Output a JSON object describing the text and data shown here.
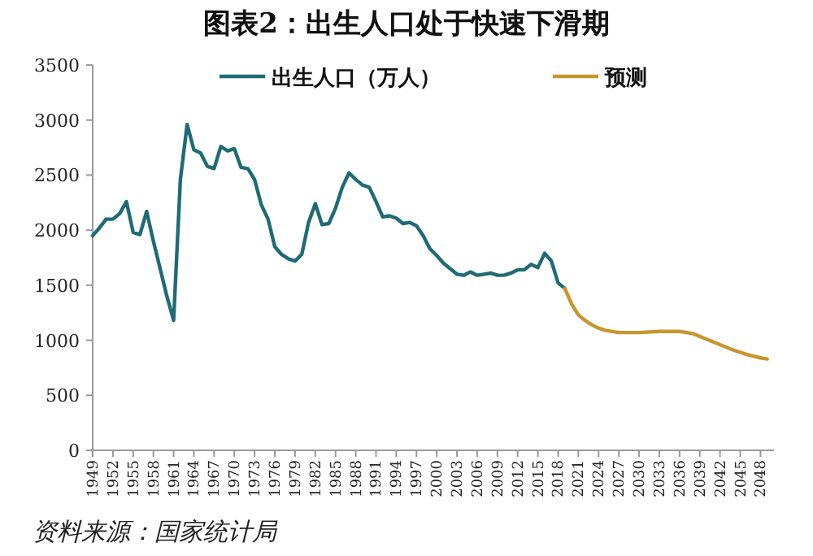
{
  "chart_data": {
    "type": "line",
    "title": "图表2：出生人口处于快速下滑期",
    "annotations": [
      "资料来源：国家统计局"
    ],
    "xlim": [
      1949,
      2050
    ],
    "xticks": [
      1949,
      1952,
      1955,
      1958,
      1961,
      1964,
      1967,
      1970,
      1973,
      1976,
      1979,
      1982,
      1985,
      1988,
      1991,
      1994,
      1997,
      2000,
      2003,
      2006,
      2009,
      2012,
      2015,
      2018,
      2021,
      2024,
      2027,
      2030,
      2033,
      2036,
      2039,
      2042,
      2045,
      2048
    ],
    "ylim": [
      0,
      3500
    ],
    "yticks": [
      0,
      500,
      1000,
      1500,
      2000,
      2500,
      3000,
      3500
    ],
    "grid": false,
    "legend": "top",
    "marker": "none",
    "line_style": "solid",
    "series": [
      {
        "name": "出生人口（万人）",
        "color": "#1f6b75",
        "x": [
          1949,
          1950,
          1951,
          1952,
          1953,
          1954,
          1955,
          1956,
          1957,
          1958,
          1959,
          1960,
          1961,
          1962,
          1963,
          1964,
          1965,
          1966,
          1967,
          1968,
          1969,
          1970,
          1971,
          1972,
          1973,
          1974,
          1975,
          1976,
          1977,
          1978,
          1979,
          1980,
          1981,
          1982,
          1983,
          1984,
          1985,
          1986,
          1987,
          1988,
          1989,
          1990,
          1991,
          1992,
          1993,
          1994,
          1995,
          1996,
          1997,
          1998,
          1999,
          2000,
          2001,
          2002,
          2003,
          2004,
          2005,
          2006,
          2007,
          2008,
          2009,
          2010,
          2011,
          2012,
          2013,
          2014,
          2015,
          2016,
          2017,
          2018,
          2019
        ],
        "values": [
          1950,
          2020,
          2100,
          2100,
          2150,
          2260,
          1980,
          1960,
          2170,
          1900,
          1650,
          1400,
          1180,
          2460,
          2960,
          2730,
          2700,
          2580,
          2560,
          2760,
          2720,
          2740,
          2570,
          2560,
          2460,
          2230,
          2100,
          1850,
          1780,
          1740,
          1720,
          1780,
          2070,
          2240,
          2050,
          2060,
          2200,
          2390,
          2520,
          2460,
          2410,
          2390,
          2260,
          2120,
          2130,
          2110,
          2060,
          2070,
          2040,
          1950,
          1830,
          1770,
          1700,
          1650,
          1600,
          1590,
          1620,
          1590,
          1600,
          1610,
          1590,
          1590,
          1610,
          1640,
          1640,
          1690,
          1660,
          1790,
          1720,
          1520,
          1470
        ]
      },
      {
        "name": "预测",
        "color": "#c8962e",
        "x": [
          2019,
          2020,
          2021,
          2022,
          2023,
          2024,
          2025,
          2027,
          2030,
          2033,
          2036,
          2038,
          2040,
          2042,
          2044,
          2046,
          2048,
          2049
        ],
        "values": [
          1470,
          1330,
          1230,
          1180,
          1140,
          1110,
          1090,
          1070,
          1070,
          1080,
          1080,
          1060,
          1010,
          960,
          910,
          870,
          840,
          830
        ]
      }
    ]
  }
}
